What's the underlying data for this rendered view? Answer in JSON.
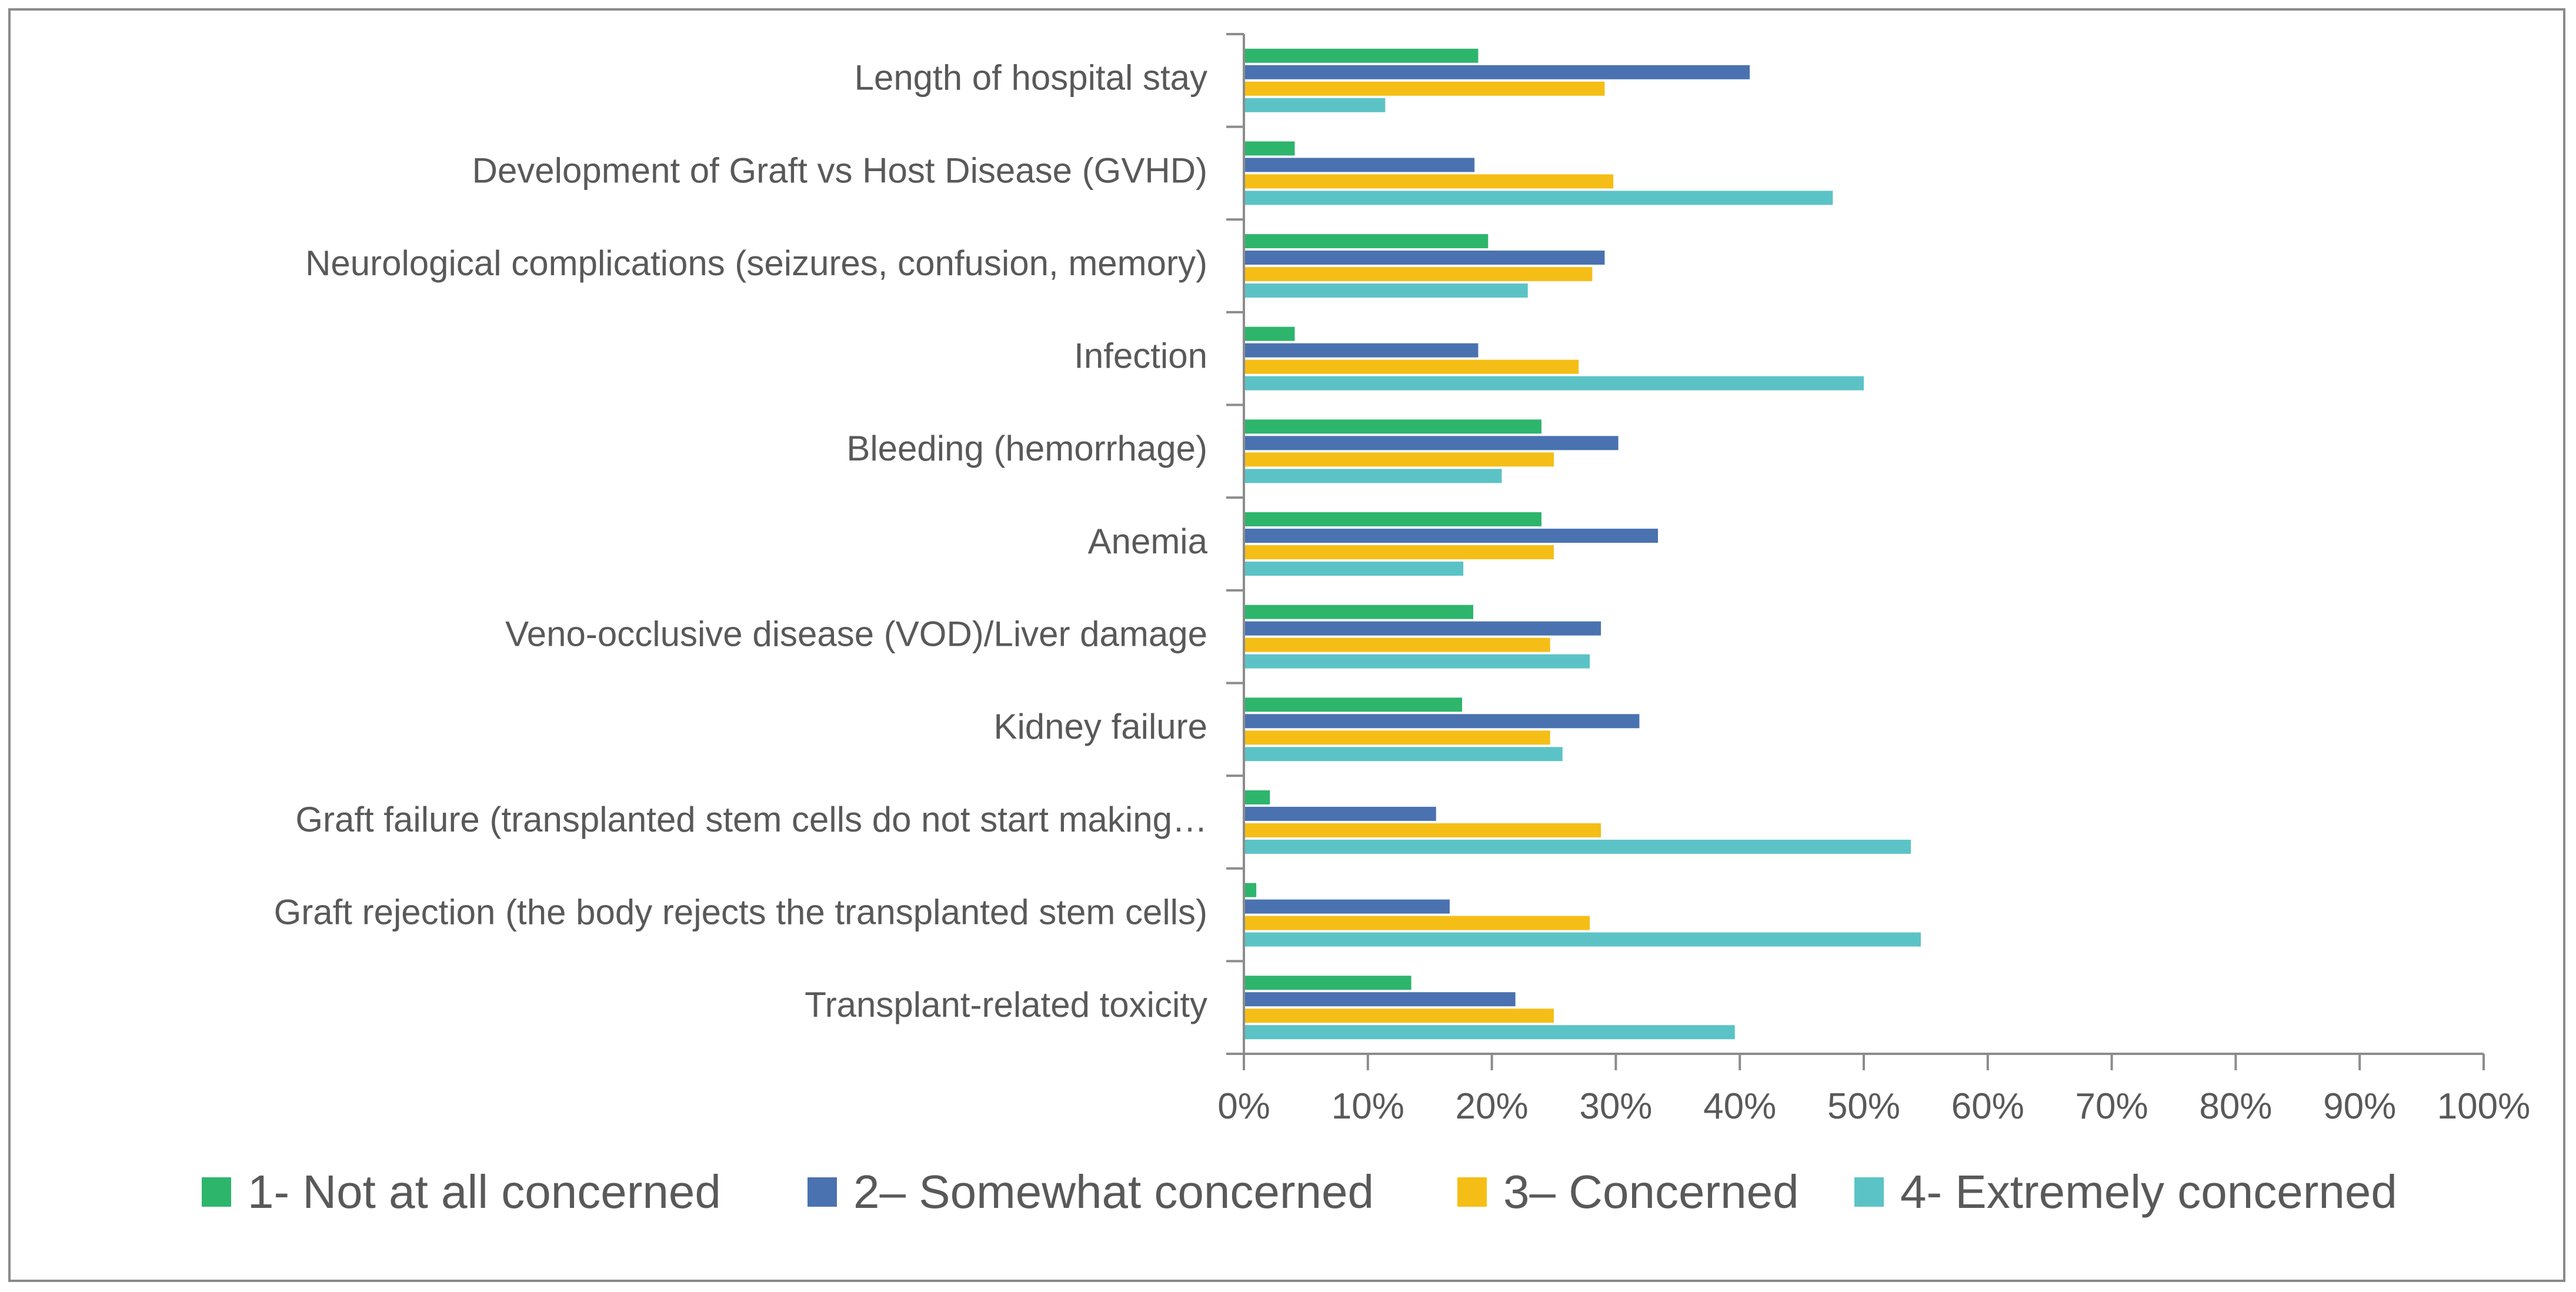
{
  "chart_data": {
    "type": "bar",
    "orientation": "horizontal",
    "title": "",
    "xlabel": "",
    "ylabel": "",
    "xlim": [
      0,
      100
    ],
    "grid": false,
    "legend_position": "bottom",
    "x_ticks": [
      "0%",
      "10%",
      "20%",
      "30%",
      "40%",
      "50%",
      "60%",
      "70%",
      "80%",
      "90%",
      "100%"
    ],
    "categories": [
      "Length of hospital stay",
      "Development of Graft vs Host Disease (GVHD)",
      "Neurological complications (seizures, confusion, memory)",
      "Infection",
      "Bleeding (hemorrhage)",
      "Anemia",
      "Veno-occlusive disease (VOD)/Liver damage",
      "Kidney failure",
      "Graft failure (transplanted stem cells do not start making…",
      "Graft rejection (the body rejects the transplanted stem cells)",
      "Transplant-related toxicity"
    ],
    "series": [
      {
        "name": "1- Not at all concerned",
        "color": "#2DB56C",
        "values": [
          18.9,
          4.1,
          19.7,
          4.1,
          24.0,
          24.0,
          18.5,
          17.6,
          2.1,
          1.0,
          13.5
        ]
      },
      {
        "name": "2– Somewhat concerned",
        "color": "#4A72B0",
        "values": [
          40.8,
          18.6,
          29.1,
          18.9,
          30.2,
          33.4,
          28.8,
          31.9,
          15.5,
          16.6,
          21.9
        ]
      },
      {
        "name": "3– Concerned",
        "color": "#F5BE16",
        "values": [
          29.1,
          29.8,
          28.1,
          27.0,
          25.0,
          25.0,
          24.7,
          24.7,
          28.8,
          27.9,
          25.0
        ]
      },
      {
        "name": "4- Extremely concerned",
        "color": "#5BC3C6",
        "values": [
          11.4,
          47.5,
          22.9,
          50.0,
          20.8,
          17.7,
          27.9,
          25.7,
          53.8,
          54.6,
          39.6
        ]
      }
    ]
  }
}
